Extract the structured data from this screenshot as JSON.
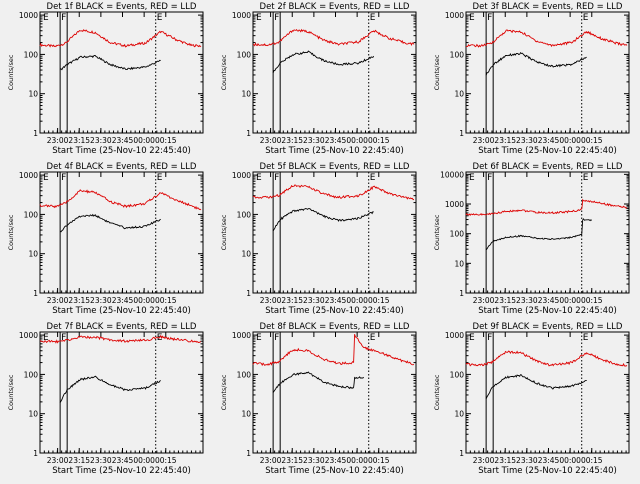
{
  "chart_data": [
    {
      "type": "line",
      "title": "Det 1f BLACK = Events, RED = LLD",
      "xlabel": "Start Time (25-Nov-10 22:45:40)",
      "ylabel": "Counts/sec",
      "yscale": "log",
      "ylim": [
        1,
        1200
      ],
      "y_ticks": [
        "1",
        "10",
        "100",
        "1000"
      ],
      "x_ticks": [
        "23:00",
        "23:15",
        "23:30",
        "23:45",
        "00:00",
        "00:15"
      ],
      "flags": [
        "E",
        "F",
        "E"
      ],
      "series": [
        {
          "name": "LLD",
          "color": "#dd0000",
          "points": [
            [
              0,
              175
            ],
            [
              15,
              160
            ],
            [
              25,
              190
            ],
            [
              40,
              420
            ],
            [
              55,
              360
            ],
            [
              70,
              200
            ],
            [
              85,
              165
            ],
            [
              105,
              195
            ],
            [
              120,
              380
            ],
            [
              135,
              240
            ],
            [
              150,
              170
            ],
            [
              160,
              165
            ]
          ]
        },
        {
          "name": "Events",
          "color": "#000000",
          "points": [
            [
              20,
              40
            ],
            [
              27,
              55
            ],
            [
              40,
              85
            ],
            [
              55,
              90
            ],
            [
              70,
              55
            ],
            [
              85,
              42
            ],
            [
              105,
              48
            ],
            [
              120,
              70
            ]
          ]
        }
      ]
    },
    {
      "type": "line",
      "title": "Det 2f BLACK = Events, RED = LLD",
      "xlabel": "Start Time (25-Nov-10 22:45:40)",
      "ylabel": "Counts/sec",
      "yscale": "log",
      "ylim": [
        1,
        1200
      ],
      "y_ticks": [
        "1",
        "10",
        "100",
        "1000"
      ],
      "x_ticks": [
        "23:00",
        "23:15",
        "23:30",
        "23:45",
        "00:00",
        "00:15"
      ],
      "flags": [
        "E",
        "F",
        "E"
      ],
      "series": [
        {
          "name": "LLD",
          "color": "#dd0000",
          "points": [
            [
              0,
              180
            ],
            [
              15,
              175
            ],
            [
              25,
              200
            ],
            [
              40,
              420
            ],
            [
              55,
              380
            ],
            [
              70,
              230
            ],
            [
              85,
              180
            ],
            [
              105,
              210
            ],
            [
              120,
              400
            ],
            [
              135,
              260
            ],
            [
              150,
              200
            ],
            [
              160,
              180
            ]
          ]
        },
        {
          "name": "Events",
          "color": "#000000",
          "points": [
            [
              20,
              35
            ],
            [
              27,
              60
            ],
            [
              40,
              100
            ],
            [
              55,
              115
            ],
            [
              70,
              70
            ],
            [
              85,
              55
            ],
            [
              105,
              60
            ],
            [
              120,
              90
            ]
          ]
        }
      ]
    },
    {
      "type": "line",
      "title": "Det 3f BLACK = Events, RED = LLD",
      "xlabel": "Start Time (25-Nov-10 22:45:40)",
      "ylabel": "Counts/sec",
      "yscale": "log",
      "ylim": [
        1,
        1200
      ],
      "y_ticks": [
        "1",
        "10",
        "100",
        "1000"
      ],
      "x_ticks": [
        "23:00",
        "23:15",
        "23:30",
        "23:45",
        "00:00",
        "00:15"
      ],
      "flags": [
        "E",
        "F",
        "E"
      ],
      "series": [
        {
          "name": "LLD",
          "color": "#dd0000",
          "points": [
            [
              0,
              170
            ],
            [
              15,
              165
            ],
            [
              25,
              190
            ],
            [
              40,
              400
            ],
            [
              55,
              370
            ],
            [
              70,
              220
            ],
            [
              85,
              170
            ],
            [
              105,
              200
            ],
            [
              120,
              380
            ],
            [
              135,
              250
            ],
            [
              150,
              190
            ],
            [
              160,
              170
            ]
          ]
        },
        {
          "name": "Events",
          "color": "#000000",
          "points": [
            [
              20,
              30
            ],
            [
              27,
              55
            ],
            [
              40,
              95
            ],
            [
              55,
              105
            ],
            [
              70,
              65
            ],
            [
              85,
              50
            ],
            [
              105,
              55
            ],
            [
              120,
              85
            ]
          ]
        }
      ]
    },
    {
      "type": "line",
      "title": "Det 4f BLACK = Events, RED = LLD",
      "xlabel": "Start Time (25-Nov-10 22:45:40)",
      "ylabel": "Counts/sec",
      "yscale": "log",
      "ylim": [
        1,
        1200
      ],
      "y_ticks": [
        "1",
        "10",
        "100",
        "1000"
      ],
      "x_ticks": [
        "23:00",
        "23:15",
        "23:30",
        "23:45",
        "00:00",
        "00:15"
      ],
      "flags": [
        "E",
        "F",
        "E"
      ],
      "series": [
        {
          "name": "LLD",
          "color": "#dd0000",
          "points": [
            [
              0,
              170
            ],
            [
              15,
              160
            ],
            [
              25,
              190
            ],
            [
              40,
              400
            ],
            [
              55,
              360
            ],
            [
              70,
              210
            ],
            [
              85,
              160
            ],
            [
              105,
              190
            ],
            [
              120,
              360
            ],
            [
              135,
              230
            ],
            [
              150,
              170
            ],
            [
              160,
              130
            ]
          ]
        },
        {
          "name": "Events",
          "color": "#000000",
          "points": [
            [
              20,
              35
            ],
            [
              27,
              55
            ],
            [
              40,
              90
            ],
            [
              55,
              95
            ],
            [
              70,
              60
            ],
            [
              85,
              45
            ],
            [
              105,
              50
            ],
            [
              120,
              75
            ]
          ]
        }
      ]
    },
    {
      "type": "line",
      "title": "Det 5f BLACK = Events, RED = LLD",
      "xlabel": "Start Time (25-Nov-10 22:45:40)",
      "ylabel": "Counts/sec",
      "yscale": "log",
      "ylim": [
        1,
        1200
      ],
      "y_ticks": [
        "1",
        "10",
        "100",
        "1000"
      ],
      "x_ticks": [
        "23:00",
        "23:15",
        "23:30",
        "23:45",
        "00:00",
        "00:15"
      ],
      "flags": [
        "E",
        "F",
        "E"
      ],
      "series": [
        {
          "name": "LLD",
          "color": "#dd0000",
          "points": [
            [
              0,
              280
            ],
            [
              15,
              270
            ],
            [
              25,
              300
            ],
            [
              40,
              550
            ],
            [
              55,
              500
            ],
            [
              70,
              330
            ],
            [
              85,
              270
            ],
            [
              105,
              300
            ],
            [
              120,
              500
            ],
            [
              135,
              340
            ],
            [
              150,
              270
            ],
            [
              160,
              240
            ]
          ]
        },
        {
          "name": "Events",
          "color": "#000000",
          "points": [
            [
              20,
              40
            ],
            [
              27,
              75
            ],
            [
              40,
              120
            ],
            [
              55,
              140
            ],
            [
              70,
              90
            ],
            [
              85,
              70
            ],
            [
              105,
              80
            ],
            [
              120,
              115
            ]
          ]
        }
      ]
    },
    {
      "type": "line",
      "title": "Det 6f BLACK = Events, RED = LLD",
      "xlabel": "Start Time (25-Nov-10 22:45:40)",
      "ylabel": "Counts/sec",
      "yscale": "log",
      "ylim": [
        1,
        12000
      ],
      "y_ticks": [
        "1",
        "10",
        "100",
        "1000",
        "10000"
      ],
      "x_ticks": [
        "23:00",
        "23:15",
        "23:30",
        "23:45",
        "00:00",
        "00:15"
      ],
      "flags": [
        "E",
        "F",
        "E"
      ],
      "series": [
        {
          "name": "LLD",
          "color": "#dd0000",
          "points": [
            [
              0,
              450
            ],
            [
              20,
              440
            ],
            [
              40,
              560
            ],
            [
              55,
              620
            ],
            [
              70,
              520
            ],
            [
              85,
              500
            ],
            [
              105,
              560
            ],
            [
              115,
              650
            ],
            [
              116,
              1300
            ],
            [
              130,
              1150
            ],
            [
              145,
              900
            ],
            [
              160,
              750
            ]
          ]
        },
        {
          "name": "Events",
          "color": "#000000",
          "points": [
            [
              20,
              30
            ],
            [
              27,
              55
            ],
            [
              40,
              75
            ],
            [
              55,
              85
            ],
            [
              70,
              70
            ],
            [
              85,
              65
            ],
            [
              105,
              75
            ],
            [
              115,
              90
            ],
            [
              116,
              300
            ],
            [
              125,
              280
            ]
          ]
        }
      ]
    },
    {
      "type": "line",
      "title": "Det 7f BLACK = Events, RED = LLD",
      "xlabel": "Start Time (25-Nov-10 22:45:40)",
      "ylabel": "Counts/sec",
      "yscale": "log",
      "ylim": [
        1,
        1200
      ],
      "y_ticks": [
        "1",
        "10",
        "100",
        "1000"
      ],
      "x_ticks": [
        "23:00",
        "23:15",
        "23:30",
        "23:45",
        "00:00",
        "00:15"
      ],
      "flags": [
        "E",
        "F",
        "E"
      ],
      "series": [
        {
          "name": "LLD",
          "color": "#dd0000",
          "points": [
            [
              0,
              700
            ],
            [
              15,
              680
            ],
            [
              25,
              720
            ],
            [
              40,
              900
            ],
            [
              55,
              880
            ],
            [
              70,
              760
            ],
            [
              85,
              700
            ],
            [
              105,
              740
            ],
            [
              120,
              900
            ],
            [
              135,
              780
            ],
            [
              150,
              700
            ],
            [
              160,
              680
            ]
          ]
        },
        {
          "name": "Events",
          "color": "#000000",
          "points": [
            [
              20,
              20
            ],
            [
              27,
              40
            ],
            [
              40,
              75
            ],
            [
              55,
              85
            ],
            [
              70,
              55
            ],
            [
              85,
              40
            ],
            [
              105,
              45
            ],
            [
              120,
              70
            ]
          ]
        }
      ]
    },
    {
      "type": "line",
      "title": "Det 8f BLACK = Events, RED = LLD",
      "xlabel": "Start Time (25-Nov-10 22:45:40)",
      "ylabel": "Counts/sec",
      "yscale": "log",
      "ylim": [
        1,
        1200
      ],
      "y_ticks": [
        "1",
        "10",
        "100",
        "1000"
      ],
      "x_ticks": [
        "23:00",
        "23:15",
        "23:30",
        "23:45",
        "00:00",
        "00:15"
      ],
      "flags": [
        "E",
        "F",
        "E"
      ],
      "series": [
        {
          "name": "LLD",
          "color": "#dd0000",
          "points": [
            [
              0,
              190
            ],
            [
              15,
              180
            ],
            [
              25,
              210
            ],
            [
              40,
              430
            ],
            [
              55,
              400
            ],
            [
              70,
              240
            ],
            [
              85,
              190
            ],
            [
              100,
              200
            ],
            [
              101,
              1000
            ],
            [
              110,
              480
            ],
            [
              125,
              380
            ],
            [
              140,
              260
            ],
            [
              160,
              180
            ]
          ]
        },
        {
          "name": "Events",
          "color": "#000000",
          "points": [
            [
              20,
              35
            ],
            [
              27,
              60
            ],
            [
              40,
              100
            ],
            [
              55,
              110
            ],
            [
              70,
              65
            ],
            [
              85,
              50
            ],
            [
              100,
              45
            ],
            [
              101,
              80
            ],
            [
              110,
              85
            ]
          ]
        }
      ]
    },
    {
      "type": "line",
      "title": "Det 9f BLACK = Events, RED = LLD",
      "xlabel": "Start Time (25-Nov-10 22:45:40)",
      "ylabel": "Counts/sec",
      "yscale": "log",
      "ylim": [
        1,
        1200
      ],
      "y_ticks": [
        "1",
        "10",
        "100",
        "1000"
      ],
      "x_ticks": [
        "23:00",
        "23:15",
        "23:30",
        "23:45",
        "00:00",
        "00:15"
      ],
      "flags": [
        "E",
        "F",
        "E"
      ],
      "series": [
        {
          "name": "LLD",
          "color": "#dd0000",
          "points": [
            [
              0,
              180
            ],
            [
              15,
              170
            ],
            [
              25,
              200
            ],
            [
              40,
              380
            ],
            [
              55,
              350
            ],
            [
              70,
              220
            ],
            [
              85,
              170
            ],
            [
              105,
              200
            ],
            [
              120,
              360
            ],
            [
              135,
              240
            ],
            [
              150,
              180
            ],
            [
              160,
              170
            ]
          ]
        },
        {
          "name": "Events",
          "color": "#000000",
          "points": [
            [
              20,
              25
            ],
            [
              27,
              50
            ],
            [
              40,
              85
            ],
            [
              55,
              95
            ],
            [
              70,
              60
            ],
            [
              85,
              45
            ],
            [
              105,
              50
            ],
            [
              120,
              70
            ]
          ]
        }
      ]
    }
  ]
}
